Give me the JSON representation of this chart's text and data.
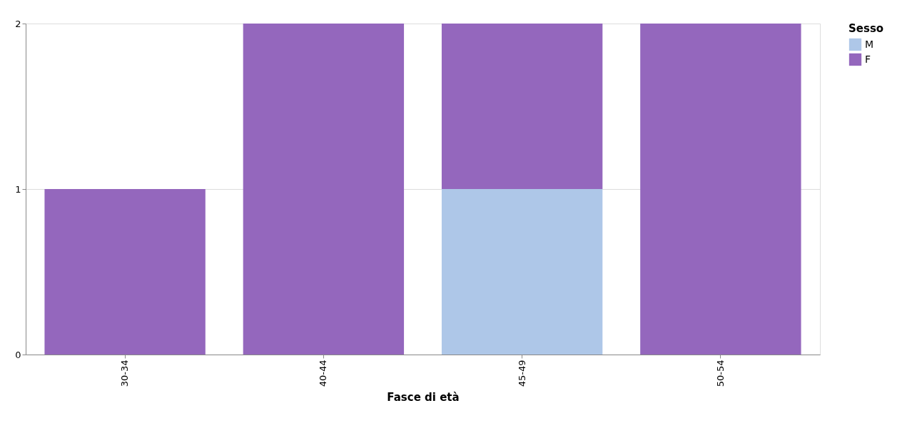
{
  "chart_data": {
    "type": "bar",
    "stacked": true,
    "xlabel": "Fasce di età",
    "legend_title": "Sesso",
    "legend": "top right",
    "grid": "y",
    "categories": [
      "30-34",
      "40-44",
      "45-49",
      "50-54"
    ],
    "series": [
      {
        "name": "M",
        "color": "#aec7e8",
        "values": [
          0,
          0,
          1,
          0
        ]
      },
      {
        "name": "F",
        "color": "#9467bd",
        "values": [
          1,
          2,
          1,
          2
        ]
      }
    ],
    "ylim": [
      0,
      2
    ],
    "yticks": [
      0,
      1,
      2
    ]
  }
}
